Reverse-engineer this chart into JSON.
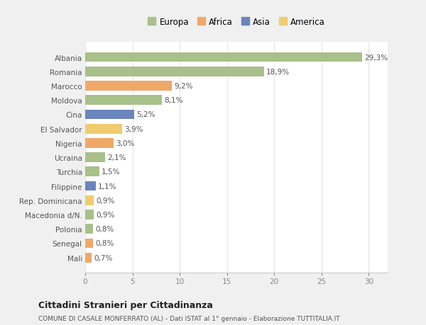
{
  "countries": [
    "Albania",
    "Romania",
    "Marocco",
    "Moldova",
    "Cina",
    "El Salvador",
    "Nigeria",
    "Ucraina",
    "Turchia",
    "Filippine",
    "Rep. Dominicana",
    "Macedonia d/N.",
    "Polonia",
    "Senegal",
    "Mali"
  ],
  "values": [
    29.3,
    18.9,
    9.2,
    8.1,
    5.2,
    3.9,
    3.0,
    2.1,
    1.5,
    1.1,
    0.9,
    0.9,
    0.8,
    0.8,
    0.7
  ],
  "labels": [
    "29,3%",
    "18,9%",
    "9,2%",
    "8,1%",
    "5,2%",
    "3,9%",
    "3,0%",
    "2,1%",
    "1,5%",
    "1,1%",
    "0,9%",
    "0,9%",
    "0,8%",
    "0,8%",
    "0,7%"
  ],
  "colors": [
    "#a8c08a",
    "#a8c08a",
    "#f0a868",
    "#a8c08a",
    "#6b85bd",
    "#f0cc70",
    "#f0a868",
    "#a8c08a",
    "#a8c08a",
    "#6b85bd",
    "#f0cc70",
    "#a8c08a",
    "#a8c08a",
    "#f0a868",
    "#f0a868"
  ],
  "legend_labels": [
    "Europa",
    "Africa",
    "Asia",
    "America"
  ],
  "legend_colors": [
    "#a8c08a",
    "#f0a868",
    "#6b85bd",
    "#f0cc70"
  ],
  "title": "Cittadini Stranieri per Cittadinanza",
  "subtitle": "COMUNE DI CASALE MONFERRATO (AL) - Dati ISTAT al 1° gennaio - Elaborazione TUTTITALIA.IT",
  "xlim": [
    0,
    32
  ],
  "xticks": [
    0,
    5,
    10,
    15,
    20,
    25,
    30
  ],
  "bg_color": "#f0f0f0",
  "plot_bg_color": "#ffffff",
  "grid_color": "#e8e8e8",
  "bar_height": 0.68,
  "label_fontsize": 7.5,
  "ytick_fontsize": 7.5,
  "xtick_fontsize": 7.5
}
